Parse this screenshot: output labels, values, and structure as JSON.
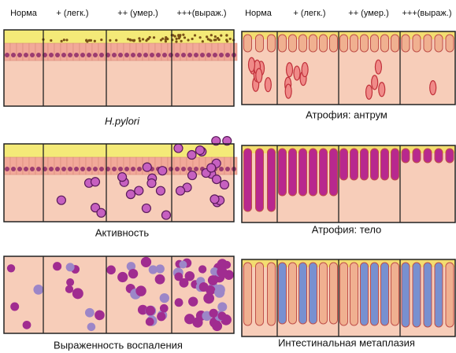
{
  "header": {
    "left": [
      "Норма",
      "+ (легк.)",
      "++ (умер.)",
      "+++(выраж.)"
    ],
    "right": [
      "Норма",
      "+ (легк.)",
      "++ (умер.)",
      "+++(выраж.)"
    ]
  },
  "left_panels": [
    {
      "caption": "H.pylori"
    },
    {
      "caption": "Активность"
    },
    {
      "caption": "Выраженность воспаления"
    }
  ],
  "right_panels": [
    {
      "caption": "Атрофия: антрум"
    },
    {
      "caption": "Атрофия: тело"
    },
    {
      "caption": "Интестинальная метаплазия"
    }
  ]
}
